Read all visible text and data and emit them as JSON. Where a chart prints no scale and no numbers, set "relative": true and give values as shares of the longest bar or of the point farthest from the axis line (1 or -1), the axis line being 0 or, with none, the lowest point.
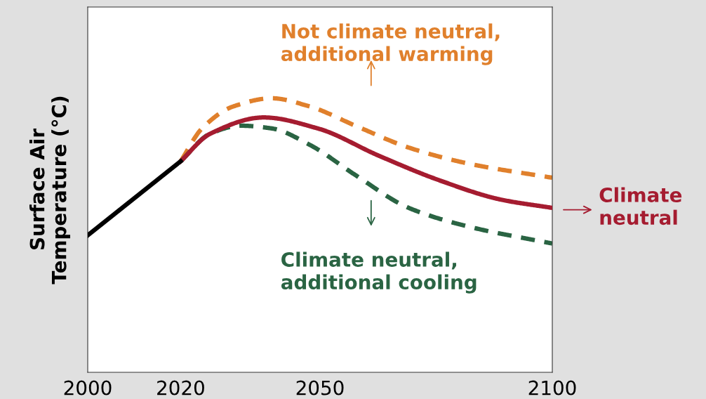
{
  "chart_data": {
    "type": "line",
    "relative": true,
    "ylabel": "Surface Air\nTemperature (°C)",
    "xlim": [
      2000,
      2100
    ],
    "xticks": [
      2000,
      2020,
      2050,
      2100
    ],
    "grid": false,
    "legend": "right",
    "marker": "none",
    "series": [
      {
        "color": "#000000",
        "line_style": "solid",
        "x": [
          2000,
          2020
        ],
        "values": [
          0.5,
          0.77
        ]
      },
      {
        "name": "Not climate neutral,\nadditional warming",
        "color": "#e0802c",
        "line_style": "dashed",
        "x": [
          2020,
          2024.6,
          2031.3,
          2039.6,
          2047.8,
          2057.6,
          2069.1,
          2082.4,
          2100
        ],
        "values": [
          0.77,
          0.89,
          0.97,
          1.0,
          0.97,
          0.9,
          0.82,
          0.76,
          0.71
        ]
      },
      {
        "name": "Climate\nneutral",
        "color": "#a51c30",
        "line_style": "solid",
        "x": [
          2020,
          2026.3,
          2037.9,
          2049.5,
          2062.7,
          2075.8,
          2089,
          2100
        ],
        "values": [
          0.77,
          0.87,
          0.93,
          0.89,
          0.79,
          0.7,
          0.63,
          0.6
        ]
      },
      {
        "name": "Climate neutral,\nadditional cooling",
        "color": "#2a6443",
        "line_style": "dashed",
        "x": [
          2020,
          2026.3,
          2032.9,
          2039.6,
          2047.8,
          2057.6,
          2069.1,
          2082.4,
          2100
        ],
        "values": [
          0.77,
          0.87,
          0.9,
          0.89,
          0.83,
          0.72,
          0.6,
          0.53,
          0.47
        ]
      }
    ]
  }
}
